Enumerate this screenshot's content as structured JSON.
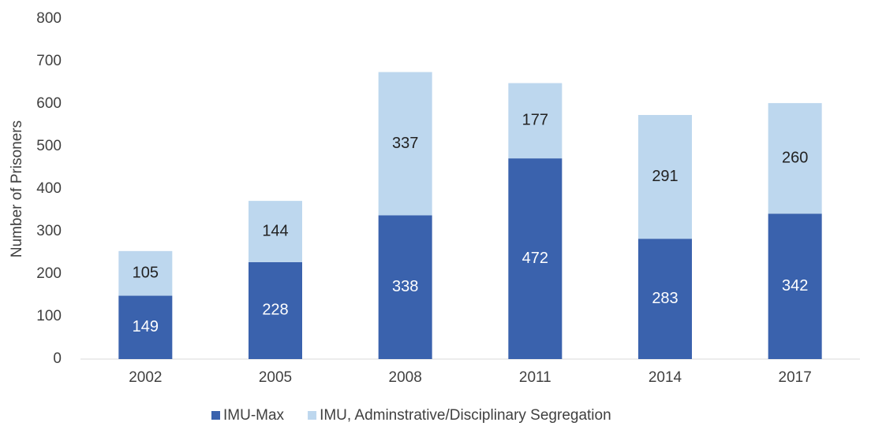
{
  "chart_data": {
    "type": "stacked_bar",
    "y_label": "Number of Prisoners",
    "categories": [
      "2002",
      "2005",
      "2008",
      "2011",
      "2014",
      "2017"
    ],
    "series": [
      {
        "name": "IMU-Max",
        "color": "#3a62ad",
        "values": [
          149,
          228,
          338,
          472,
          283,
          342
        ]
      },
      {
        "name": "IMU, Adminstrative/Disciplinary Segregation",
        "color": "#bdd7ee",
        "values": [
          105,
          144,
          337,
          177,
          291,
          260
        ]
      }
    ],
    "ylim": [
      0,
      800
    ],
    "yticks": [
      0,
      100,
      200,
      300,
      400,
      500,
      600,
      700,
      800
    ],
    "legend": "bottom"
  }
}
